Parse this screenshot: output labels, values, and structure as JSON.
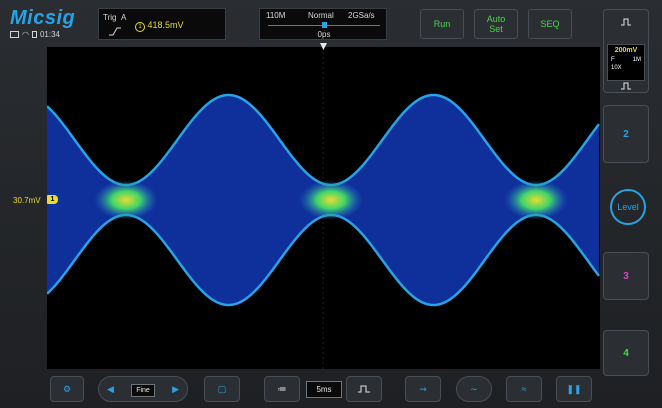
{
  "brand": {
    "logo": "Micsig",
    "accent": "#27a3e6"
  },
  "status": {
    "time": "01:34",
    "icons": [
      "monitor-icon",
      "wifi-icon",
      "battery-icon"
    ]
  },
  "trigger": {
    "label": "Trig",
    "source": "A",
    "channel": "1",
    "level": "418.5mV",
    "edge": "rising-edge-icon"
  },
  "acquisition": {
    "memory": "110M",
    "mode": "Normal",
    "sample_rate": "2GSa/s",
    "position": "0ps"
  },
  "top_buttons": {
    "run": "Run",
    "auto_set_line1": "Auto",
    "auto_set_line2": "Set",
    "seq": "SEQ"
  },
  "waveform": {
    "level_label": "30.7mV",
    "channel_marker": "1",
    "trace_color": "#27a3e6",
    "hot_color": "#e8dc2f"
  },
  "right_panel": {
    "ch1": {
      "scale": "200mV",
      "coupling": "F",
      "impedance": "1M",
      "probe": "10X"
    },
    "ch2": "2",
    "level": "Level",
    "ch3": "3",
    "ch4": "4",
    "ch2_color": "#27a3e6",
    "ch3_color": "#e83ccd",
    "ch4_color": "#47d84a"
  },
  "bottom": {
    "fine": "Fine",
    "timebase": "5ms"
  }
}
